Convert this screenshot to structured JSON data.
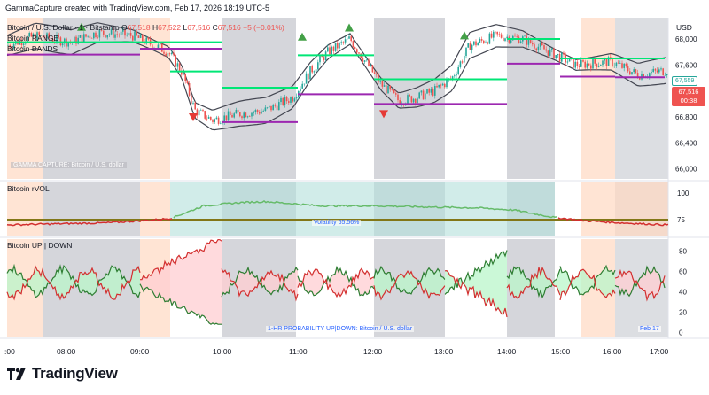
{
  "caption": "GammaCapture created with TradingView.com, Feb 17, 2026 18:19 UTC-5",
  "main_pane": {
    "symbol": "Bitcoin / U.S. Dollar · 1 · Bitstamp",
    "o_label": "O",
    "o_value": "67,518",
    "h_label": "H",
    "h_value": "67,522",
    "l_label": "L",
    "l_value": "67,516",
    "c_label": "C",
    "c_value": "67,516",
    "change": "−5 (−0.01%)",
    "indicator_1": "Bitcoin RANGE",
    "indicator_2": "Bitcoin BANDS",
    "watermark": "GAMMA CAPTURE: Bitcoin / U.S. dollar",
    "currency": "USD",
    "y_ticks": [
      "68,000",
      "67,600",
      "67,200",
      "66,800",
      "66,400",
      "66,000"
    ],
    "price_tag_green": "67,559",
    "price_tag_red": "67,516",
    "countdown": "00:38"
  },
  "rvol_pane": {
    "title": "Bitcoin rVOL",
    "y_ticks": [
      "100",
      "75"
    ],
    "annotation": "Volatility 65.56%"
  },
  "updown_pane": {
    "title": "Bitcoin UP | DOWN",
    "y_ticks": [
      "80",
      "60",
      "40",
      "20",
      "0"
    ],
    "annotation": "1-HR PROBABILITY UP|DOWN: Bitcoin / U.S. dollar",
    "date_tag": "Feb 17"
  },
  "time_axis": [
    ":00",
    "08:00",
    "09:00",
    "10:00",
    "11:00",
    "12:00",
    "13:00",
    "14:00",
    "15:00",
    "16:00",
    "17:00"
  ],
  "brand": "TradingView",
  "colors": {
    "up": "#26a69a",
    "down": "#ef5350",
    "range_line": "#00e676",
    "band_line": "#9c27b0",
    "session_gray": "#b2b5be",
    "session_orange": "#ffd9c2",
    "session_teal": "#b2dfdb"
  }
}
